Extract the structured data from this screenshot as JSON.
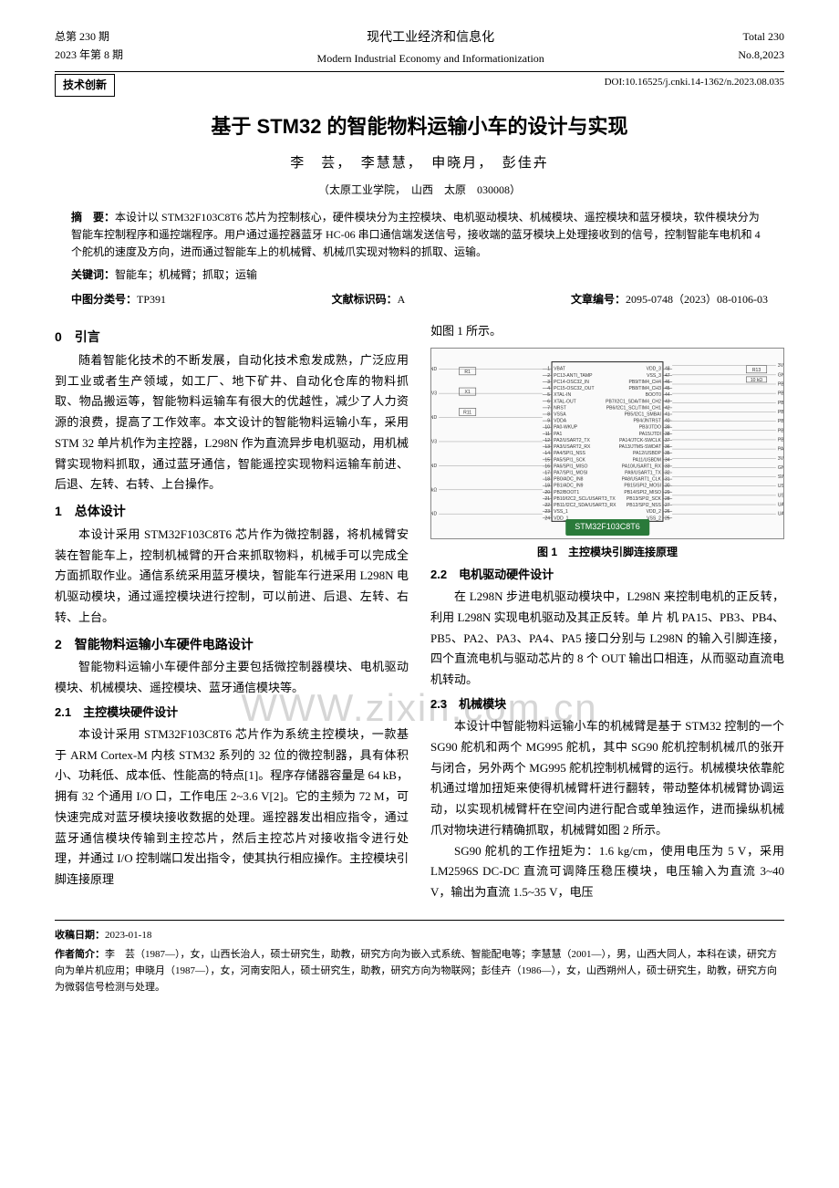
{
  "header": {
    "issue_total": "总第 230 期",
    "year_issue": "2023 年第 8 期",
    "journal_ch": "现代工业经济和信息化",
    "journal_en": "Modern Industrial Economy and Informationization",
    "total_en": "Total 230",
    "no_en": "No.8,2023",
    "tech_tag": "技术创新",
    "doi": "DOI:10.16525/j.cnki.14-1362/n.2023.08.035"
  },
  "title": "基于 STM32 的智能物料运输小车的设计与实现",
  "authors": "李　芸，　李慧慧，　申晓月，　彭佳卉",
  "affiliation": "（太原工业学院，　山西　太原　030008）",
  "abstract": {
    "label": "摘　要：",
    "text": "本设计以 STM32F103C8T6 芯片为控制核心，硬件模块分为主控模块、电机驱动模块、机械模块、遥控模块和蓝牙模块，软件模块分为智能车控制程序和遥控端程序。用户通过遥控器蓝牙 HC-06 串口通信端发送信号，接收端的蓝牙模块上处理接收到的信号，控制智能车电机和 4 个舵机的速度及方向，进而通过智能车上的机械臂、机械爪实现对物料的抓取、运输。"
  },
  "keywords": {
    "label": "关键词：",
    "text": "智能车；机械臂；抓取；运输"
  },
  "classline": {
    "clc_label": "中图分类号：",
    "clc": "TP391",
    "doc_label": "文献标识码：",
    "doc": "A",
    "num_label": "文章编号：",
    "num": "2095-0748（2023）08-0106-03"
  },
  "sec0": {
    "heading": "0　引言",
    "p1": "随着智能化技术的不断发展，自动化技术愈发成熟，广泛应用到工业或者生产领域，如工厂、地下矿井、自动化仓库的物料抓取、物品搬运等，智能物料运输车有很大的优越性，减少了人力资源的浪费，提高了工作效率。本文设计的智能物料运输小车，采用 STM 32 单片机作为主控器，L298N 作为直流异步电机驱动，用机械臂实现物料抓取，通过蓝牙通信，智能遥控实现物料运输车前进、后退、左转、右转、上台操作。"
  },
  "sec1": {
    "heading": "1　总体设计",
    "p1": "本设计采用 STM32F103C8T6 芯片作为微控制器，将机械臂安装在智能车上，控制机械臂的开合来抓取物料，机械手可以完成全方面抓取作业。通信系统采用蓝牙模块，智能车行进采用 L298N 电机驱动模块，通过遥控模块进行控制，可以前进、后退、左转、右转、上台。"
  },
  "sec2": {
    "heading": "2　智能物料运输小车硬件电路设计",
    "p1": "智能物料运输小车硬件部分主要包括微控制器模块、电机驱动模块、机械模块、遥控模块、蓝牙通信模块等。"
  },
  "sec21": {
    "heading": "2.1　主控模块硬件设计",
    "p1": "本设计采用 STM32F103C8T6 芯片作为系统主控模块，一款基于 ARM Cortex-M 内核 STM32 系列的 32 位的微控制器，具有体积小、功耗低、成本低、性能高的特点[1]。程序存储器容量是 64 kB，拥有 32 个通用 I/O 口，工作电压 2~3.6 V[2]。它的主频为 72 M，可快速完成对蓝牙模块接收数据的处理。遥控器发出相应指令，通过蓝牙通信模块传输到主控芯片，然后主控芯片对接收指令进行处理，并通过 I/O 控制端口发出指令，使其执行相应操作。主控模块引脚连接原理"
  },
  "right_intro": "如图 1 所示。",
  "figure1": {
    "caption": "图 1　主控模块引脚连接原理",
    "chip": "STM32F103C8T6",
    "left_pins": [
      "VBAT",
      "PC13-ANTI_TAMP",
      "PC14-OSC32_IN",
      "PC15-OSC32_OUT",
      "XTAL-IN",
      "XTAL-OUT",
      "NRST",
      "VSSA",
      "VDDA",
      "PA0-WKUP",
      "PA1",
      "PA2/USART2_TX",
      "PA3/USART2_RX",
      "PA4/SPI1_NSS",
      "PA5/SPI1_SCK",
      "PA6/SPI1_MISO",
      "PA7/SPI1_MOSI",
      "PB0/ADC_IN8",
      "PB1/ADC_IN9",
      "PB2/BOOT1",
      "PB10/I2C2_SCL/USART3_TX",
      "PB11/I2C2_SDA/USART3_RX",
      "VSS_1",
      "VDD_1"
    ],
    "right_pins": [
      "VDD_3",
      "VSS_3",
      "PB9/TIM4_CH4",
      "PB8/TIM4_CH3",
      "BOOT0",
      "PB7/I2C1_SDA/TIM4_CH2",
      "PB6/I2C1_SCL/TIM4_CH1",
      "PB5/I2C1_SMBAI",
      "PB4/JNTRST",
      "PB3/JTDO",
      "PA15/JTDI",
      "PA14/JTCK-SWCLK",
      "PA13/JTMS-SWDAT",
      "PA12/USBDP",
      "PA11/USBDM",
      "PA10/USART1_RX",
      "PA9/USART1_TX",
      "PA8/USART1_CLK",
      "PB15/SPI2_MOSI",
      "PB14/SPI2_MISO",
      "PB13/SPI2_SCK",
      "PB12/SPI2_NSS",
      "VDD_2",
      "VSS_2"
    ],
    "side_labels": [
      "3V3",
      "GND",
      "PB9",
      "PB8",
      "PB7",
      "PB6",
      "PB5",
      "PB4",
      "PB3",
      "PA15",
      "3V3",
      "GND",
      "SWD_IO",
      "USB_DP",
      "USB_DM",
      "UART1_RX",
      "UART1_TX"
    ],
    "left_side": [
      "GND",
      "3V3",
      "GND",
      "3V3",
      "GND",
      "10 kΩ",
      "GND"
    ],
    "components": [
      "R1",
      "C7",
      "R11",
      "X1",
      "R14",
      "10 kΩ"
    ],
    "colors": {
      "chip_bg": "#2a7a3a",
      "wire": "#666666",
      "box": "#222222"
    }
  },
  "sec22": {
    "heading": "2.2　电机驱动硬件设计",
    "p1": "在 L298N 步进电机驱动模块中，L298N 来控制电机的正反转，利用 L298N 实现电机驱动及其正反转。单 片 机 PA15、PB3、PB4、PB5、PA2、PA3、PA4、PA5 接口分别与 L298N 的输入引脚连接，四个直流电机与驱动芯片的 8 个 OUT 输出口相连，从而驱动直流电机转动。"
  },
  "sec23": {
    "heading": "2.3　机械模块",
    "p1": "本设计中智能物料运输小车的机械臂是基于 STM32 控制的一个 SG90 舵机和两个 MG995 舵机，其中 SG90 舵机控制机械爪的张开与闭合，另外两个 MG995 舵机控制机械臂的运行。机械模块依靠舵机通过增加扭矩来使得机械臂杆进行翻转，带动整体机械臂协调运动，以实现机械臂杆在空间内进行配合或单独运作，进而操纵机械爪对物块进行精确抓取，机械臂如图 2 所示。",
    "p2": "SG90 舵机的工作扭矩为：1.6 kg/cm，使用电压为 5 V，采用 LM2596S DC-DC 直流可调降压稳压模块，电压输入为直流 3~40 V，输出为直流 1.5~35 V，电压"
  },
  "footer": {
    "date_label": "收稿日期：",
    "date": "2023-01-18",
    "bio_label": "作者简介：",
    "bio": "李　芸（1987—），女，山西长治人，硕士研究生，助教，研究方向为嵌入式系统、智能配电等；李慧慧（2001—），男，山西大同人，本科在读，研究方向为单片机应用；申晓月（1987—），女，河南安阳人，硕士研究生，助教，研究方向为物联网；彭佳卉（1986—），女，山西朔州人，硕士研究生，助教，研究方向为微弱信号检测与处理。"
  },
  "watermark": "WWW.zixin.com.cn"
}
